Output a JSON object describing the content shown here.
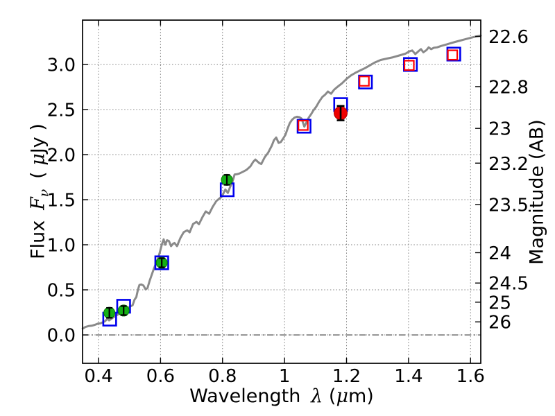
{
  "labels": {
    "xlabel": {
      "prefix": "Wavelength",
      "symbol": "λ",
      "open": "(",
      "mu": "μ",
      "rest": "m)"
    },
    "ylabel": {
      "prefix": "Flux",
      "symbol": "F",
      "subscript": "ν",
      "open": "( ",
      "mu": "μ",
      "rest": "Jy )"
    },
    "ylabel_right": "Magnitude (AB)"
  },
  "chart_data": {
    "type": "line",
    "title": "",
    "xlabel": "Wavelength λ (μm)",
    "ylabel_left": "Flux Fν (μJy)",
    "ylabel_right": "Magnitude (AB)",
    "x_range": [
      0.3485,
      1.633
    ],
    "y_range_flux": [
      -0.315,
      3.492
    ],
    "grid": true,
    "grid_style": "dotted",
    "zero_line": {
      "y": 0,
      "style": "dashdot"
    },
    "ab_zeropoint_ujy": 23.9,
    "x_ticks": {
      "values": [
        0.4,
        0.6,
        0.8,
        1.0,
        1.2,
        1.4,
        1.6
      ],
      "labels": [
        "0.4",
        "0.6",
        "0.8",
        "1",
        "1.2",
        "1.4",
        "1.6"
      ]
    },
    "y_ticks": {
      "values": [
        0.0,
        0.5,
        1.0,
        1.5,
        2.0,
        2.5,
        3.0
      ],
      "labels": [
        "0.0",
        "0.5",
        "1.0",
        "1.5",
        "2.0",
        "2.5",
        "3.0"
      ]
    },
    "mag_ticks": {
      "values": [
        22.6,
        22.8,
        23.0,
        23.2,
        23.5,
        24.0,
        24.5,
        25.0,
        26.0
      ],
      "labels": [
        "22.6",
        "22.8",
        "23",
        "23.2",
        "23.5",
        "24",
        "24.5",
        "25",
        "26"
      ]
    },
    "series": {
      "model_spectrum": {
        "name": "model spectrum",
        "color": "#8a8a8a",
        "width": 3,
        "points": [
          [
            0.349,
            0.07
          ],
          [
            0.358,
            0.088
          ],
          [
            0.368,
            0.098
          ],
          [
            0.378,
            0.102
          ],
          [
            0.388,
            0.112
          ],
          [
            0.398,
            0.125
          ],
          [
            0.406,
            0.128
          ],
          [
            0.414,
            0.14
          ],
          [
            0.421,
            0.152
          ],
          [
            0.429,
            0.18
          ],
          [
            0.434,
            0.161
          ],
          [
            0.44,
            0.175
          ],
          [
            0.447,
            0.193
          ],
          [
            0.455,
            0.21
          ],
          [
            0.463,
            0.228
          ],
          [
            0.471,
            0.242
          ],
          [
            0.478,
            0.258
          ],
          [
            0.483,
            0.287
          ],
          [
            0.489,
            0.306
          ],
          [
            0.496,
            0.3
          ],
          [
            0.503,
            0.316
          ],
          [
            0.51,
            0.33
          ],
          [
            0.516,
            0.39
          ],
          [
            0.522,
            0.42
          ],
          [
            0.527,
            0.5
          ],
          [
            0.532,
            0.555
          ],
          [
            0.538,
            0.56
          ],
          [
            0.545,
            0.548
          ],
          [
            0.552,
            0.505
          ],
          [
            0.558,
            0.52
          ],
          [
            0.565,
            0.6
          ],
          [
            0.571,
            0.66
          ],
          [
            0.578,
            0.73
          ],
          [
            0.585,
            0.79
          ],
          [
            0.592,
            0.85
          ],
          [
            0.598,
            0.92
          ],
          [
            0.604,
            1.0
          ],
          [
            0.61,
            1.06
          ],
          [
            0.615,
            1.0
          ],
          [
            0.621,
            1.05
          ],
          [
            0.627,
            1.042
          ],
          [
            0.634,
            0.985
          ],
          [
            0.64,
            1.01
          ],
          [
            0.645,
            1.02
          ],
          [
            0.653,
            0.985
          ],
          [
            0.664,
            1.075
          ],
          [
            0.675,
            1.14
          ],
          [
            0.686,
            1.16
          ],
          [
            0.694,
            1.138
          ],
          [
            0.705,
            1.23
          ],
          [
            0.716,
            1.254
          ],
          [
            0.724,
            1.228
          ],
          [
            0.735,
            1.305
          ],
          [
            0.746,
            1.37
          ],
          [
            0.757,
            1.344
          ],
          [
            0.768,
            1.42
          ],
          [
            0.78,
            1.485
          ],
          [
            0.798,
            1.536
          ],
          [
            0.809,
            1.613
          ],
          [
            0.817,
            1.575
          ],
          [
            0.824,
            1.638
          ],
          [
            0.832,
            1.7
          ],
          [
            0.839,
            1.78
          ],
          [
            0.847,
            1.783
          ],
          [
            0.854,
            1.79
          ],
          [
            0.866,
            1.81
          ],
          [
            0.877,
            1.83
          ],
          [
            0.89,
            1.87
          ],
          [
            0.899,
            1.92
          ],
          [
            0.906,
            1.945
          ],
          [
            0.918,
            1.908
          ],
          [
            0.925,
            1.895
          ],
          [
            0.936,
            1.97
          ],
          [
            0.947,
            2.02
          ],
          [
            0.959,
            2.1
          ],
          [
            0.966,
            2.16
          ],
          [
            0.973,
            2.19
          ],
          [
            0.981,
            2.13
          ],
          [
            0.988,
            2.14
          ],
          [
            0.996,
            2.18
          ],
          [
            1.003,
            2.22
          ],
          [
            1.01,
            2.29
          ],
          [
            1.017,
            2.35
          ],
          [
            1.024,
            2.385
          ],
          [
            1.032,
            2.41
          ],
          [
            1.04,
            2.42
          ],
          [
            1.048,
            2.415
          ],
          [
            1.055,
            2.4
          ],
          [
            1.064,
            2.31
          ],
          [
            1.071,
            2.36
          ],
          [
            1.078,
            2.41
          ],
          [
            1.086,
            2.45
          ],
          [
            1.093,
            2.49
          ],
          [
            1.102,
            2.53
          ],
          [
            1.112,
            2.59
          ],
          [
            1.122,
            2.64
          ],
          [
            1.131,
            2.665
          ],
          [
            1.14,
            2.7
          ],
          [
            1.15,
            2.675
          ],
          [
            1.16,
            2.72
          ],
          [
            1.172,
            2.755
          ],
          [
            1.185,
            2.79
          ],
          [
            1.2,
            2.84
          ],
          [
            1.215,
            2.88
          ],
          [
            1.23,
            2.91
          ],
          [
            1.245,
            2.935
          ],
          [
            1.26,
            2.96
          ],
          [
            1.275,
            2.99
          ],
          [
            1.29,
            3.02
          ],
          [
            1.31,
            3.05
          ],
          [
            1.33,
            3.065
          ],
          [
            1.35,
            3.08
          ],
          [
            1.37,
            3.1
          ],
          [
            1.39,
            3.12
          ],
          [
            1.403,
            3.145
          ],
          [
            1.412,
            3.155
          ],
          [
            1.422,
            3.115
          ],
          [
            1.433,
            3.15
          ],
          [
            1.44,
            3.17
          ],
          [
            1.448,
            3.135
          ],
          [
            1.458,
            3.16
          ],
          [
            1.465,
            3.19
          ],
          [
            1.473,
            3.17
          ],
          [
            1.482,
            3.185
          ],
          [
            1.492,
            3.19
          ],
          [
            1.505,
            3.205
          ],
          [
            1.52,
            3.22
          ],
          [
            1.535,
            3.235
          ],
          [
            1.55,
            3.25
          ],
          [
            1.567,
            3.265
          ],
          [
            1.583,
            3.28
          ],
          [
            1.6,
            3.295
          ],
          [
            1.617,
            3.31
          ],
          [
            1.633,
            3.32
          ]
        ]
      },
      "blue_squares": {
        "name": "model photometry (blue open squares)",
        "color": "#0000ee",
        "size": 18.5,
        "stroke": 2.6,
        "points": [
          [
            0.436,
            0.175
          ],
          [
            0.481,
            0.318
          ],
          [
            0.604,
            0.8
          ],
          [
            0.815,
            1.61
          ],
          [
            1.063,
            2.315
          ],
          [
            1.181,
            2.555
          ],
          [
            1.261,
            2.805
          ],
          [
            1.406,
            3.0
          ],
          [
            1.546,
            3.115
          ]
        ]
      },
      "red_squares": {
        "name": "model photometry (red open squares)",
        "color": "#ff0000",
        "size": 13.5,
        "stroke": 2.2,
        "points": [
          [
            1.06,
            2.325
          ],
          [
            1.257,
            2.815
          ],
          [
            1.402,
            2.99
          ],
          [
            1.542,
            3.105
          ]
        ]
      },
      "green_circles": {
        "name": "observed photometry (green filled circles)",
        "color": "#15b015",
        "edge": "#077a07",
        "radius": 8,
        "points": [
          {
            "x": 0.435,
            "y": 0.245,
            "err": 0.055
          },
          {
            "x": 0.481,
            "y": 0.27,
            "err": 0.05
          },
          {
            "x": 0.604,
            "y": 0.8,
            "err": 0.05
          },
          {
            "x": 0.814,
            "y": 1.72,
            "err": 0.055
          }
        ]
      },
      "red_circle": {
        "name": "observed photometry (red filled circle)",
        "color": "#ee0000",
        "edge": "#aa0000",
        "radius": 9.5,
        "points": [
          {
            "x": 1.181,
            "y": 2.46,
            "err": 0.08
          }
        ]
      }
    }
  }
}
